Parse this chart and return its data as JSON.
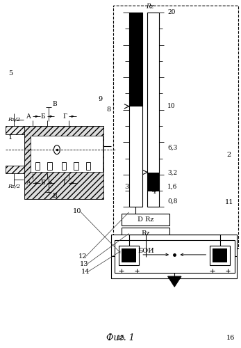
{
  "bg_color": "#ffffff",
  "fig_width": 3.47,
  "fig_height": 5.0,
  "dpi": 100,
  "title": "Фиг. 1",
  "scale_labels": [
    "20",
    "10",
    "6,3",
    "3,2",
    "1,6",
    "0,8"
  ],
  "scale_rz": "Rz",
  "box_labels": [
    "D Rz",
    "Rz",
    "БОИ"
  ]
}
